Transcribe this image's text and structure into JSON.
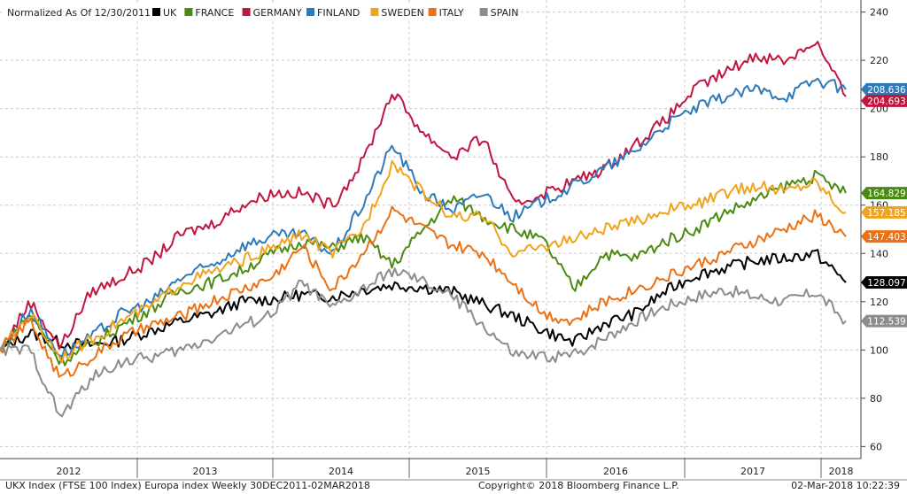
{
  "footer": {
    "left": "UKX Index (FTSE 100 Index) Europa index  Weekly 30DEC2011-02MAR2018",
    "copyright": "Copyright© 2018 Bloomberg Finance L.P.",
    "timestamp": "02-Mar-2018 10:22:39"
  },
  "chart_data": {
    "type": "line",
    "title": "Normalized As Of 12/30/2011",
    "x_labels": [
      "2012",
      "2013",
      "2014",
      "2015",
      "2016",
      "2017",
      "2018"
    ],
    "ylim": [
      55,
      245
    ],
    "y_ticks": [
      60,
      80,
      100,
      120,
      140,
      160,
      180,
      200,
      220,
      240
    ],
    "grid": true,
    "legend_placement": "top-left",
    "series": [
      {
        "name": "UK",
        "color": "#000000",
        "last_label": "128.097",
        "values": [
          100,
          107,
          103,
          102,
          104,
          108,
          112,
          115,
          120,
          121,
          123,
          122,
          125,
          127,
          126,
          124,
          119,
          114,
          108,
          103,
          111,
          115,
          124,
          131,
          134,
          137,
          138,
          140,
          128
        ]
      },
      {
        "name": "FRANCE",
        "color": "#4b8a12",
        "last_label": "164.829",
        "values": [
          100,
          115,
          95,
          102,
          110,
          117,
          125,
          128,
          133,
          140,
          145,
          142,
          147,
          135,
          150,
          163,
          155,
          150,
          145,
          125,
          140,
          138,
          145,
          150,
          157,
          162,
          168,
          172,
          165
        ]
      },
      {
        "name": "GERMANY",
        "color": "#c0163f",
        "last_label": "204.693",
        "values": [
          100,
          120,
          101,
          124,
          130,
          137,
          148,
          152,
          160,
          165,
          165,
          160,
          178,
          207,
          190,
          180,
          188,
          160,
          165,
          170,
          175,
          185,
          195,
          208,
          215,
          222,
          220,
          228,
          205
        ]
      },
      {
        "name": "FINLAND",
        "color": "#2e7ab8",
        "last_label": "208.636",
        "values": [
          100,
          117,
          98,
          105,
          115,
          120,
          130,
          135,
          143,
          147,
          148,
          140,
          160,
          185,
          165,
          158,
          165,
          155,
          162,
          168,
          175,
          182,
          193,
          200,
          205,
          208,
          205,
          212,
          208
        ]
      },
      {
        "name": "SWEDEN",
        "color": "#f0a41e",
        "last_label": "157.185",
        "values": [
          100,
          115,
          97,
          104,
          112,
          118,
          128,
          132,
          137,
          142,
          148,
          140,
          150,
          178,
          165,
          155,
          155,
          140,
          143,
          146,
          150,
          153,
          158,
          160,
          165,
          168,
          166,
          170,
          157
        ]
      },
      {
        "name": "ITALY",
        "color": "#ec7014",
        "last_label": "147.403",
        "values": [
          100,
          112,
          88,
          97,
          105,
          110,
          114,
          120,
          125,
          130,
          143,
          125,
          140,
          158,
          150,
          143,
          140,
          128,
          115,
          112,
          120,
          125,
          130,
          135,
          140,
          145,
          150,
          156,
          147
        ]
      },
      {
        "name": "SPAIN",
        "color": "#8c8c8c",
        "last_label": "112.539",
        "values": [
          100,
          100,
          72,
          88,
          95,
          97,
          100,
          105,
          110,
          115,
          128,
          117,
          125,
          133,
          128,
          122,
          110,
          98,
          97,
          98,
          105,
          112,
          118,
          122,
          125,
          122,
          120,
          124,
          112
        ]
      }
    ]
  }
}
